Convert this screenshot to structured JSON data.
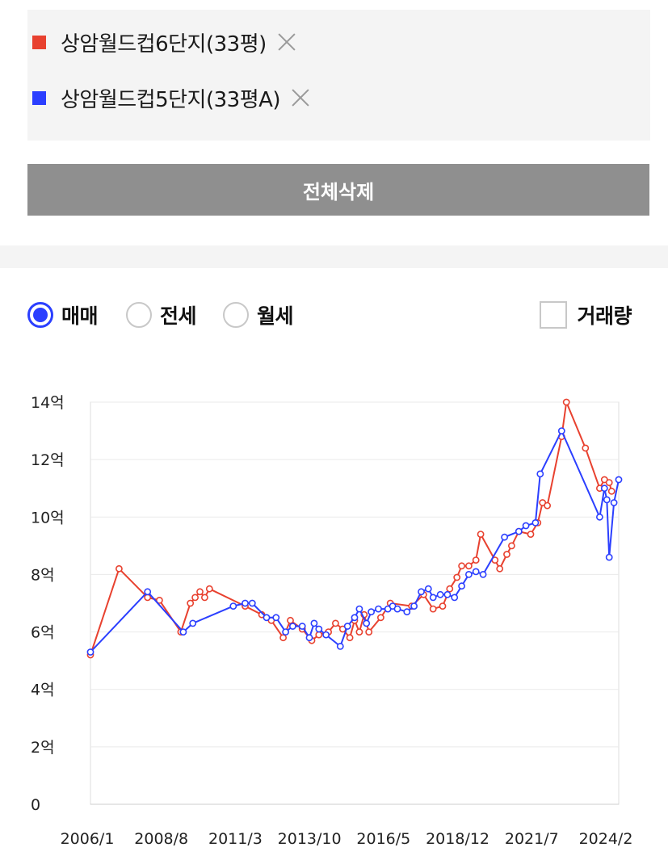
{
  "compare_list": {
    "items": [
      {
        "label": "상암월드컵6단지(33평)",
        "color": "#e8412f",
        "remove_icon": "close-icon"
      },
      {
        "label": "상암월드컵5단지(33평A)",
        "color": "#2b3fff",
        "remove_icon": "close-icon"
      }
    ],
    "delete_all_label": "전체삭제"
  },
  "controls": {
    "deal_types": [
      {
        "label": "매매",
        "checked": true
      },
      {
        "label": "전세",
        "checked": false
      },
      {
        "label": "월세",
        "checked": false
      }
    ],
    "volume_label": "거래량",
    "volume_checked": false
  },
  "chart_data": {
    "type": "line",
    "title": "",
    "xlabel": "",
    "ylabel": "",
    "x_ticks": [
      "2006/1",
      "2008/8",
      "2011/3",
      "2013/10",
      "2016/5",
      "2018/12",
      "2021/7",
      "2024/2"
    ],
    "y_ticks": [
      "0",
      "2억",
      "4억",
      "6억",
      "8억",
      "10억",
      "12억",
      "14억"
    ],
    "ylim": [
      0,
      14
    ],
    "xlim": [
      "2006-01",
      "2024-07"
    ],
    "grid": true,
    "legend": "none",
    "series": [
      {
        "name": "상암월드컵6단지(33평)",
        "color": "#e8412f",
        "points": [
          [
            "2006-01",
            5.2
          ],
          [
            "2007-01",
            8.2
          ],
          [
            "2008-01",
            7.2
          ],
          [
            "2008-06",
            7.1
          ],
          [
            "2009-03",
            6.0
          ],
          [
            "2009-07",
            7.0
          ],
          [
            "2009-09",
            7.2
          ],
          [
            "2009-11",
            7.4
          ],
          [
            "2010-01",
            7.2
          ],
          [
            "2010-03",
            7.5
          ],
          [
            "2011-06",
            6.9
          ],
          [
            "2012-01",
            6.6
          ],
          [
            "2012-05",
            6.4
          ],
          [
            "2012-10",
            5.8
          ],
          [
            "2013-01",
            6.4
          ],
          [
            "2013-06",
            6.1
          ],
          [
            "2013-10",
            5.7
          ],
          [
            "2014-01",
            5.9
          ],
          [
            "2014-05",
            6.0
          ],
          [
            "2014-08",
            6.3
          ],
          [
            "2014-11",
            6.1
          ],
          [
            "2015-02",
            5.8
          ],
          [
            "2015-04",
            6.4
          ],
          [
            "2015-06",
            6.0
          ],
          [
            "2015-08",
            6.6
          ],
          [
            "2015-10",
            6.0
          ],
          [
            "2016-03",
            6.5
          ],
          [
            "2016-07",
            7.0
          ],
          [
            "2017-04",
            6.9
          ],
          [
            "2017-09",
            7.3
          ],
          [
            "2018-01",
            6.8
          ],
          [
            "2018-05",
            6.9
          ],
          [
            "2018-08",
            7.5
          ],
          [
            "2018-11",
            7.9
          ],
          [
            "2019-01",
            8.3
          ],
          [
            "2019-04",
            8.3
          ],
          [
            "2019-07",
            8.5
          ],
          [
            "2019-09",
            9.4
          ],
          [
            "2020-03",
            8.5
          ],
          [
            "2020-05",
            8.2
          ],
          [
            "2020-08",
            8.7
          ],
          [
            "2020-10",
            9.0
          ],
          [
            "2021-01",
            9.5
          ],
          [
            "2021-06",
            9.4
          ],
          [
            "2021-09",
            9.8
          ],
          [
            "2021-11",
            10.5
          ],
          [
            "2022-01",
            10.4
          ],
          [
            "2022-07",
            12.8
          ],
          [
            "2022-09",
            14.0
          ],
          [
            "2023-05",
            12.4
          ],
          [
            "2023-11",
            11.0
          ],
          [
            "2024-01",
            11.3
          ],
          [
            "2024-03",
            11.2
          ],
          [
            "2024-04",
            10.9
          ]
        ]
      },
      {
        "name": "상암월드컵5단지(33평A)",
        "color": "#2b3fff",
        "points": [
          [
            "2006-01",
            5.3
          ],
          [
            "2008-01",
            7.4
          ],
          [
            "2009-04",
            6.0
          ],
          [
            "2009-08",
            6.3
          ],
          [
            "2011-01",
            6.9
          ],
          [
            "2011-06",
            7.0
          ],
          [
            "2011-09",
            7.0
          ],
          [
            "2012-03",
            6.5
          ],
          [
            "2012-07",
            6.5
          ],
          [
            "2012-11",
            6.0
          ],
          [
            "2013-02",
            6.2
          ],
          [
            "2013-06",
            6.2
          ],
          [
            "2013-09",
            5.8
          ],
          [
            "2013-11",
            6.3
          ],
          [
            "2014-01",
            6.1
          ],
          [
            "2014-04",
            5.9
          ],
          [
            "2014-10",
            5.5
          ],
          [
            "2015-01",
            6.2
          ],
          [
            "2015-04",
            6.5
          ],
          [
            "2015-06",
            6.8
          ],
          [
            "2015-09",
            6.3
          ],
          [
            "2015-11",
            6.7
          ],
          [
            "2016-02",
            6.8
          ],
          [
            "2016-06",
            6.8
          ],
          [
            "2016-08",
            6.9
          ],
          [
            "2016-10",
            6.8
          ],
          [
            "2017-02",
            6.7
          ],
          [
            "2017-05",
            6.9
          ],
          [
            "2017-08",
            7.4
          ],
          [
            "2017-11",
            7.5
          ],
          [
            "2018-01",
            7.2
          ],
          [
            "2018-04",
            7.3
          ],
          [
            "2018-07",
            7.3
          ],
          [
            "2018-10",
            7.2
          ],
          [
            "2019-01",
            7.6
          ],
          [
            "2019-04",
            8.0
          ],
          [
            "2019-07",
            8.1
          ],
          [
            "2019-10",
            8.0
          ],
          [
            "2020-07",
            9.3
          ],
          [
            "2021-01",
            9.5
          ],
          [
            "2021-04",
            9.7
          ],
          [
            "2021-08",
            9.8
          ],
          [
            "2021-10",
            11.5
          ],
          [
            "2022-07",
            13.0
          ],
          [
            "2023-11",
            10.0
          ],
          [
            "2024-01",
            11.0
          ],
          [
            "2024-02",
            10.6
          ],
          [
            "2024-03",
            8.6
          ],
          [
            "2024-05",
            10.5
          ],
          [
            "2024-07",
            11.3
          ]
        ]
      }
    ]
  }
}
